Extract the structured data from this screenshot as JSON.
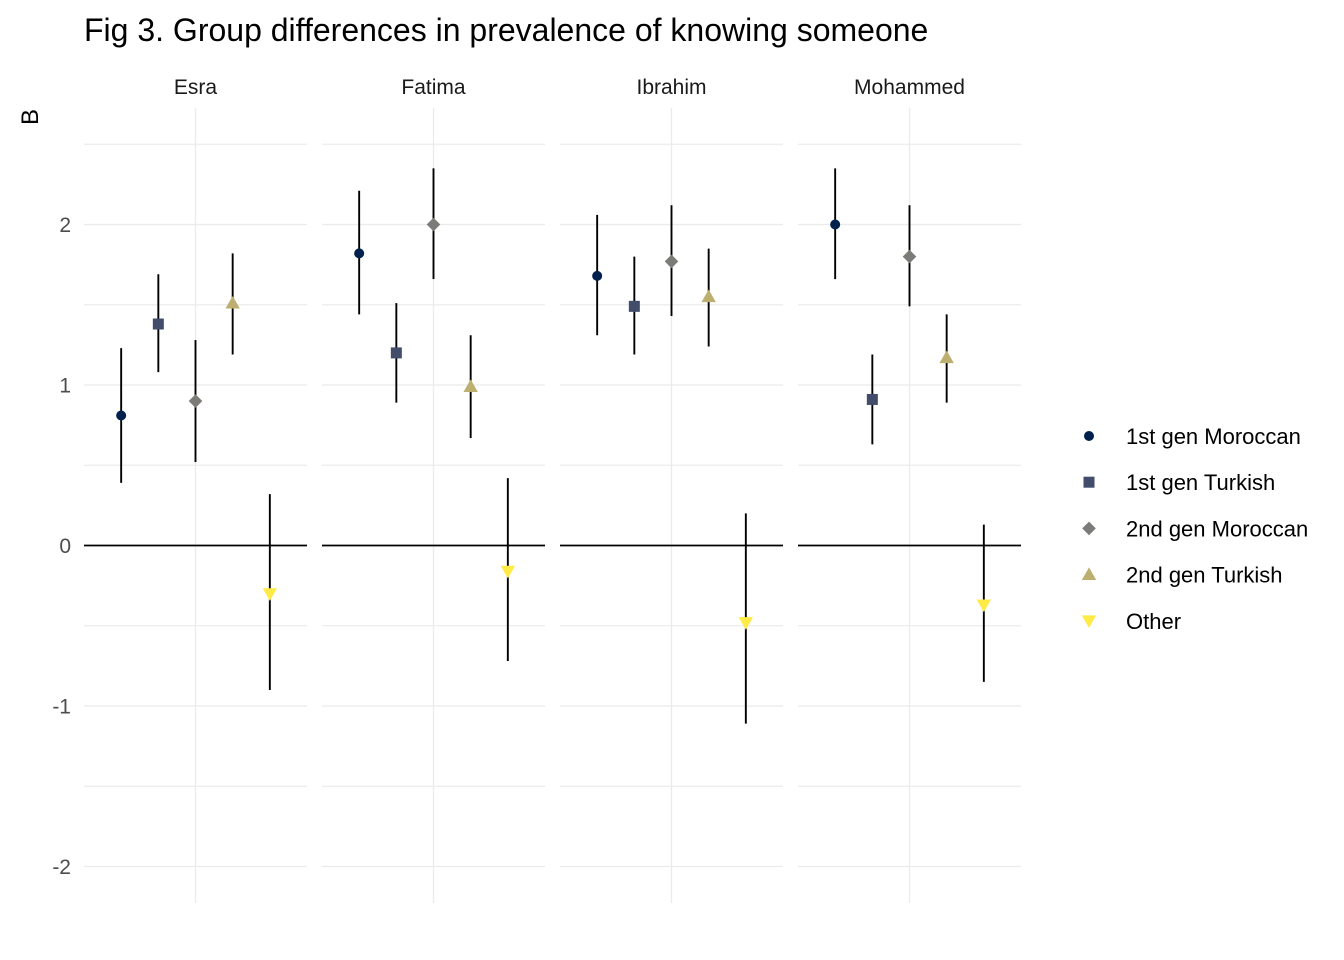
{
  "chart_data": {
    "type": "scatter",
    "title": "Fig 3. Group differences in prevalence of knowing someone",
    "ylabel": "B",
    "xlabel": "",
    "ylim": [
      -2.2,
      2.5
    ],
    "yticks": [
      "-2",
      "-1",
      "0",
      "1",
      "2"
    ],
    "ytick_values": [
      -2,
      -1,
      0,
      1,
      2
    ],
    "reference_line": 0,
    "grid": true,
    "legend_position": "right",
    "panels": [
      "Esra",
      "Fatima",
      "Ibrahim",
      "Mohammed"
    ],
    "series": [
      {
        "name": "1st gen Moroccan",
        "color": "#00204d",
        "shape": "circle",
        "values": [
          0.81,
          1.82,
          1.68,
          2.0
        ],
        "lower": [
          0.39,
          1.44,
          1.31,
          1.66
        ],
        "upper": [
          1.23,
          2.21,
          2.06,
          2.35
        ]
      },
      {
        "name": "1st gen Turkish",
        "color": "#414d6b",
        "shape": "square",
        "values": [
          1.38,
          1.2,
          1.49,
          0.91
        ],
        "lower": [
          1.08,
          0.89,
          1.19,
          0.63
        ],
        "upper": [
          1.69,
          1.51,
          1.8,
          1.19
        ]
      },
      {
        "name": "2nd gen Moroccan",
        "color": "#7c7b78",
        "shape": "diamond",
        "values": [
          0.9,
          2.0,
          1.77,
          1.8
        ],
        "lower": [
          0.52,
          1.66,
          1.43,
          1.49
        ],
        "upper": [
          1.28,
          2.35,
          2.12,
          2.12
        ]
      },
      {
        "name": "2nd gen Turkish",
        "color": "#bcaf6f",
        "shape": "triangle",
        "values": [
          1.51,
          0.99,
          1.55,
          1.17
        ],
        "lower": [
          1.19,
          0.67,
          1.24,
          0.89
        ],
        "upper": [
          1.82,
          1.31,
          1.85,
          1.44
        ]
      },
      {
        "name": "Other",
        "color": "#ffea46",
        "shape": "triangle-down",
        "values": [
          -0.3,
          -0.16,
          -0.48,
          -0.37
        ],
        "lower": [
          -0.9,
          -0.72,
          -1.11,
          -0.85
        ],
        "upper": [
          0.32,
          0.42,
          0.2,
          0.13
        ]
      }
    ]
  }
}
